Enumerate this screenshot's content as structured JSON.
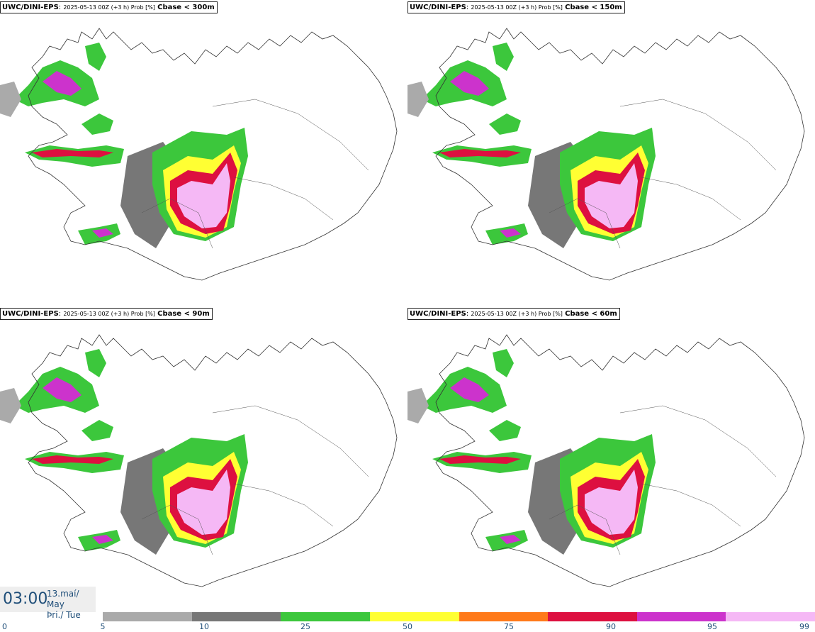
{
  "panels": [
    {
      "model": "UWC/DINI-EPS",
      "run": "2025-05-13 00Z (+3 h) Prob [%]",
      "variable": "Cbase < 300m"
    },
    {
      "model": "UWC/DINI-EPS",
      "run": "2025-05-13 00Z (+3 h) Prob [%]",
      "variable": "Cbase < 150m"
    },
    {
      "model": "UWC/DINI-EPS",
      "run": "2025-05-13 00Z (+3 h) Prob [%]",
      "variable": "Cbase < 90m"
    },
    {
      "model": "UWC/DINI-EPS",
      "run": "2025-05-13 00Z (+3 h) Prob [%]",
      "variable": "Cbase < 60m"
    }
  ],
  "time": "03:00",
  "date_line1": "13.maí/ May",
  "date_line2": "Þri./ Tue",
  "colorbar": {
    "colors": [
      "#aaaaaa",
      "#777777",
      "#3cc73c",
      "#ffff33",
      "#ff7a1a",
      "#dd1040",
      "#cc33cc",
      "#f5b8f5"
    ],
    "ticks": [
      "0",
      "5",
      "10",
      "25",
      "50",
      "75",
      "90",
      "95",
      "99"
    ]
  }
}
